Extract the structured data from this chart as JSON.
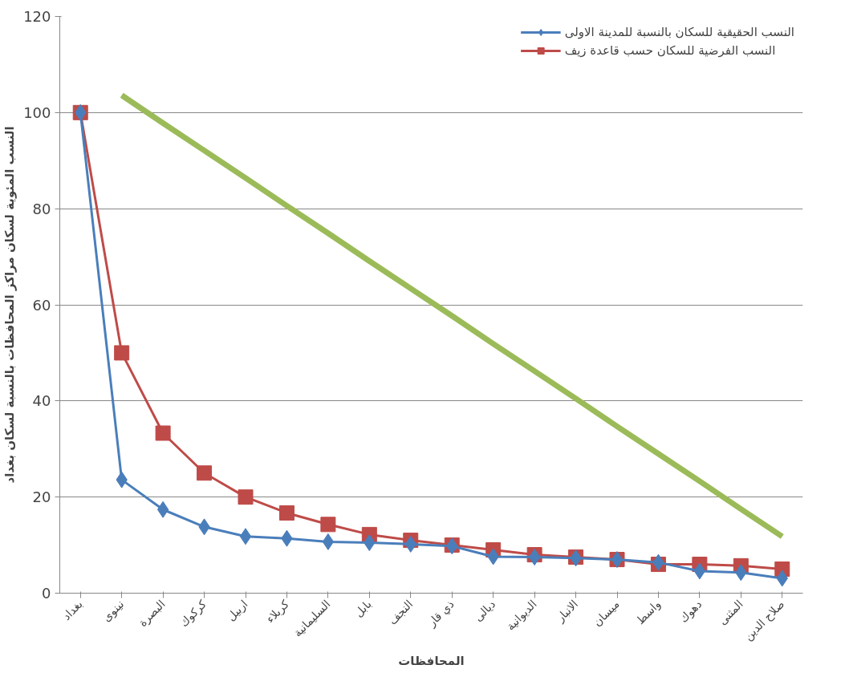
{
  "chart_data": {
    "type": "line",
    "xlabel": "المحافظات",
    "ylabel": "النسب المئوية لسكان مراكز المحافظات بالنسبة لسكان بغداد",
    "categories": [
      "بغداد",
      "نينوى",
      "البصرة",
      "كركوك",
      "اربيل",
      "كربلاء",
      "السليمانية",
      "بابل",
      "النجف",
      "ذي قار",
      "ديالى",
      "الديوانية",
      "الانبار",
      "ميسان",
      "واسط",
      "دهوك",
      "المثنى",
      "صلاح الدين"
    ],
    "series": [
      {
        "name": "النسب الحقيقية للسكان بالنسبة للمدينة الاولى",
        "color": "#4a7ebb",
        "marker": "diamond",
        "values": [
          100,
          23.6,
          17.4,
          13.8,
          11.8,
          11.4,
          10.7,
          10.5,
          10.2,
          9.8,
          7.6,
          7.5,
          7.3,
          7.0,
          6.4,
          4.6,
          4.3,
          3.1
        ]
      },
      {
        "name": "النسب الفرضية للسكان حسب قاعدة زيف",
        "color": "#be4b48",
        "marker": "square",
        "values": [
          100,
          50,
          33.3,
          25,
          20,
          16.7,
          14.3,
          12.2,
          11,
          10,
          9,
          8,
          7.5,
          7,
          6,
          6,
          5.7,
          5
        ]
      },
      {
        "color": "#9bbb59",
        "marker": "none",
        "values": [
          null,
          103.6,
          97.8,
          92.1,
          86.4,
          80.6,
          74.9,
          69.1,
          63.4,
          57.7,
          51.9,
          46.2,
          40.5,
          34.7,
          29.0,
          23.3,
          17.5,
          11.8
        ]
      }
    ],
    "ylim": [
      0,
      120
    ],
    "yticks": [
      0,
      20,
      40,
      60,
      80,
      100,
      120
    ],
    "grid": "y",
    "legend": "top right",
    "line_style": "solid"
  }
}
